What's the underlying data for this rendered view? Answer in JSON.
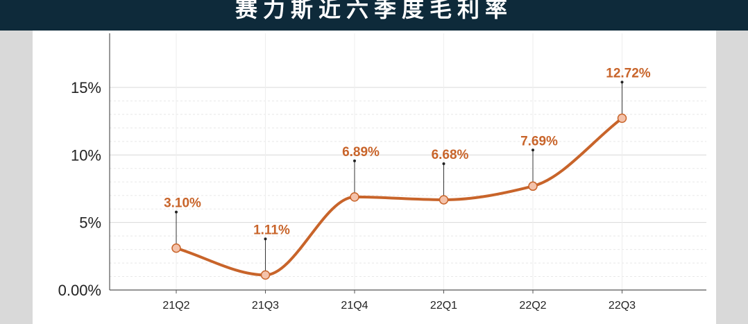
{
  "header": {
    "title": "赛力斯近六季度毛利率"
  },
  "colors": {
    "header_bg": "#0e2a3a",
    "line": "#c8642a",
    "marker_fill": "#f4c2aa",
    "label": "#c8642a"
  },
  "chart_data": {
    "type": "line",
    "title": "赛力斯近六季度毛利率",
    "categories": [
      "21Q2",
      "21Q3",
      "21Q4",
      "22Q1",
      "22Q2",
      "22Q3"
    ],
    "values": [
      3.1,
      1.11,
      6.89,
      6.68,
      7.69,
      12.72
    ],
    "data_labels": [
      "3.10%",
      "1.11%",
      "6.89%",
      "6.68%",
      "7.69%",
      "12.72%"
    ],
    "y_ticks": [
      {
        "value": 0,
        "label": "0.00%"
      },
      {
        "value": 5,
        "label": "5%"
      },
      {
        "value": 10,
        "label": "10%"
      },
      {
        "value": 15,
        "label": "15%"
      }
    ],
    "ylim": [
      0,
      15
    ],
    "grid": "dashed horizontal",
    "smooth": true
  }
}
